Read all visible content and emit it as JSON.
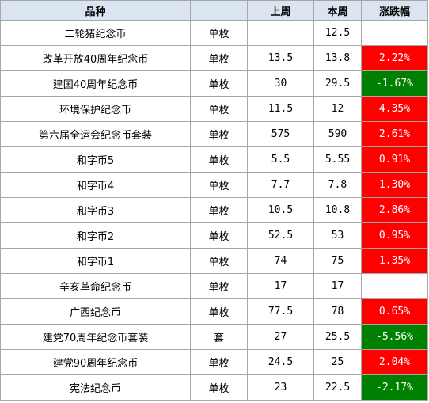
{
  "headers": {
    "name": "品种",
    "unit": "",
    "last_week": "上周",
    "this_week": "本周",
    "change": "涨跌幅"
  },
  "colors": {
    "header_bg": "#dbe5f1",
    "up": "#ff0000",
    "down": "#008000",
    "border": "#a6a6a6"
  },
  "rows": [
    {
      "name": "二轮猪纪念币",
      "unit": "单枚",
      "last": "",
      "current": "12.5",
      "change": "",
      "trend": "none"
    },
    {
      "name": "改革开放40周年纪念币",
      "unit": "单枚",
      "last": "13.5",
      "current": "13.8",
      "change": "2.22%",
      "trend": "up"
    },
    {
      "name": "建国40周年纪念币",
      "unit": "单枚",
      "last": "30",
      "current": "29.5",
      "change": "-1.67%",
      "trend": "down"
    },
    {
      "name": "环境保护纪念币",
      "unit": "单枚",
      "last": "11.5",
      "current": "12",
      "change": "4.35%",
      "trend": "up"
    },
    {
      "name": "第六届全运会纪念币套装",
      "unit": "单枚",
      "last": "575",
      "current": "590",
      "change": "2.61%",
      "trend": "up"
    },
    {
      "name": "和字币5",
      "unit": "单枚",
      "last": "5.5",
      "current": "5.55",
      "change": "0.91%",
      "trend": "up"
    },
    {
      "name": "和字币4",
      "unit": "单枚",
      "last": "7.7",
      "current": "7.8",
      "change": "1.30%",
      "trend": "up"
    },
    {
      "name": "和字币3",
      "unit": "单枚",
      "last": "10.5",
      "current": "10.8",
      "change": "2.86%",
      "trend": "up"
    },
    {
      "name": "和字币2",
      "unit": "单枚",
      "last": "52.5",
      "current": "53",
      "change": "0.95%",
      "trend": "up"
    },
    {
      "name": "和字币1",
      "unit": "单枚",
      "last": "74",
      "current": "75",
      "change": "1.35%",
      "trend": "up"
    },
    {
      "name": "辛亥革命纪念币",
      "unit": "单枚",
      "last": "17",
      "current": "17",
      "change": "",
      "trend": "none"
    },
    {
      "name": "广西纪念币",
      "unit": "单枚",
      "last": "77.5",
      "current": "78",
      "change": "0.65%",
      "trend": "up"
    },
    {
      "name": "建党70周年纪念币套装",
      "unit": "套",
      "last": "27",
      "current": "25.5",
      "change": "-5.56%",
      "trend": "down"
    },
    {
      "name": "建党90周年纪念币",
      "unit": "单枚",
      "last": "24.5",
      "current": "25",
      "change": "2.04%",
      "trend": "up"
    },
    {
      "name": "宪法纪念币",
      "unit": "单枚",
      "last": "23",
      "current": "22.5",
      "change": "-2.17%",
      "trend": "down"
    }
  ]
}
